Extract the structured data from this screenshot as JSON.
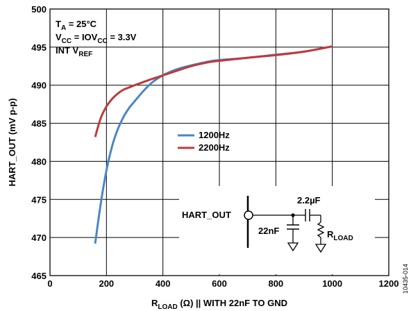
{
  "chart_data": {
    "type": "line",
    "xlabel": {
      "main": "R",
      "sub": "LOAD",
      "rest": " (Ω) || WITH 22nF TO GND"
    },
    "ylabel": "HART_OUT (mV p-p)",
    "xlim": [
      0,
      1200
    ],
    "ylim": [
      465,
      500
    ],
    "xticks": [
      0,
      200,
      400,
      600,
      800,
      1000,
      1200
    ],
    "yticks": [
      465,
      470,
      475,
      480,
      485,
      490,
      495,
      500
    ],
    "grid": true,
    "legend_position": "center",
    "conditions": [
      {
        "main": "T",
        "sub": "A",
        "rest": " = 25°C"
      },
      {
        "main": "V",
        "sub": "CC",
        "rest": " = IOV",
        "sub2": "CC",
        "rest2": " = 3.3V"
      },
      {
        "main": "INT V",
        "sub": "REF",
        "rest": ""
      }
    ],
    "series": [
      {
        "name": "1200Hz",
        "color": "#4a86c6",
        "x": [
          160,
          180,
          200,
          220,
          240,
          260,
          280,
          300,
          330,
          360,
          400,
          450,
          500,
          560,
          600,
          700,
          800,
          900,
          1000
        ],
        "y": [
          469.2,
          474.5,
          478.8,
          482.0,
          484.2,
          485.8,
          487.0,
          487.9,
          489.2,
          490.3,
          491.3,
          492.1,
          492.6,
          493.1,
          493.3,
          493.6,
          494.0,
          494.4,
          495.1
        ]
      },
      {
        "name": "2200Hz",
        "color": "#c0393b",
        "x": [
          160,
          180,
          200,
          220,
          240,
          260,
          280,
          300,
          330,
          360,
          400,
          450,
          500,
          560,
          600,
          700,
          800,
          900,
          1000
        ],
        "y": [
          483.2,
          485.7,
          487.2,
          488.2,
          488.9,
          489.4,
          489.7,
          490.0,
          490.4,
          490.8,
          491.3,
          491.9,
          492.5,
          493.0,
          493.2,
          493.6,
          493.95,
          494.4,
          495.1
        ]
      }
    ]
  },
  "circuit": {
    "node_label": "HART_OUT",
    "series_cap": "2.2µF",
    "shunt_cap": "22nF",
    "load": {
      "main": "R",
      "sub": "LOAD"
    }
  },
  "figure_id": "10435-014"
}
